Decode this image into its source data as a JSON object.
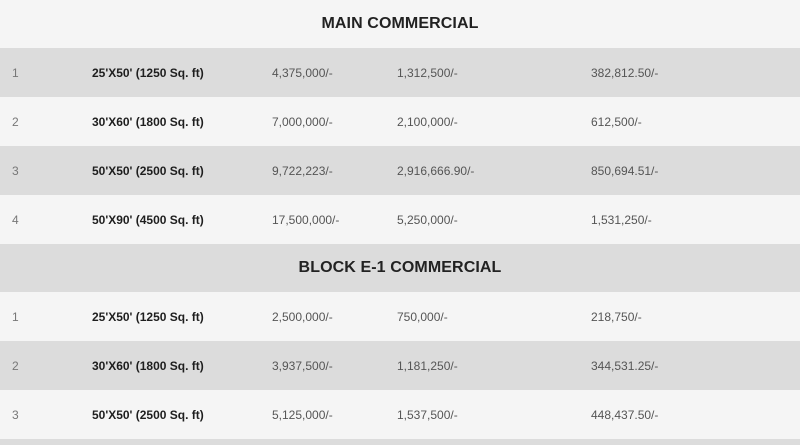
{
  "sections": [
    {
      "title": "MAIN COMMERCIAL",
      "rows": [
        {
          "num": "1",
          "size": "25'X50' (1250 Sq. ft)",
          "total": "4,375,000/-",
          "down": "1,312,500/-",
          "installment": "382,812.50/-"
        },
        {
          "num": "2",
          "size": "30'X60' (1800 Sq. ft)",
          "total": "7,000,000/-",
          "down": "2,100,000/-",
          "installment": "612,500/-"
        },
        {
          "num": "3",
          "size": "50'X50' (2500 Sq. ft)",
          "total": "9,722,223/-",
          "down": "2,916,666.90/-",
          "installment": "850,694.51/-"
        },
        {
          "num": "4",
          "size": "50'X90' (4500 Sq. ft)",
          "total": "17,500,000/-",
          "down": "5,250,000/-",
          "installment": "1,531,250/-"
        }
      ]
    },
    {
      "title": "BLOCK E-1 COMMERCIAL",
      "rows": [
        {
          "num": "1",
          "size": "25'X50' (1250 Sq. ft)",
          "total": "2,500,000/-",
          "down": "750,000/-",
          "installment": "218,750/-"
        },
        {
          "num": "2",
          "size": "30'X60' (1800 Sq. ft)",
          "total": "3,937,500/-",
          "down": "1,181,250/-",
          "installment": "344,531.25/-"
        },
        {
          "num": "3",
          "size": "50'X50' (2500 Sq. ft)",
          "total": "5,125,000/-",
          "down": "1,537,500/-",
          "installment": "448,437.50/-"
        }
      ]
    }
  ],
  "colors": {
    "band_shaded": "#dcdcdc",
    "band_light": "#f5f5f5",
    "header_text": "#222222",
    "body_text": "#555555"
  }
}
